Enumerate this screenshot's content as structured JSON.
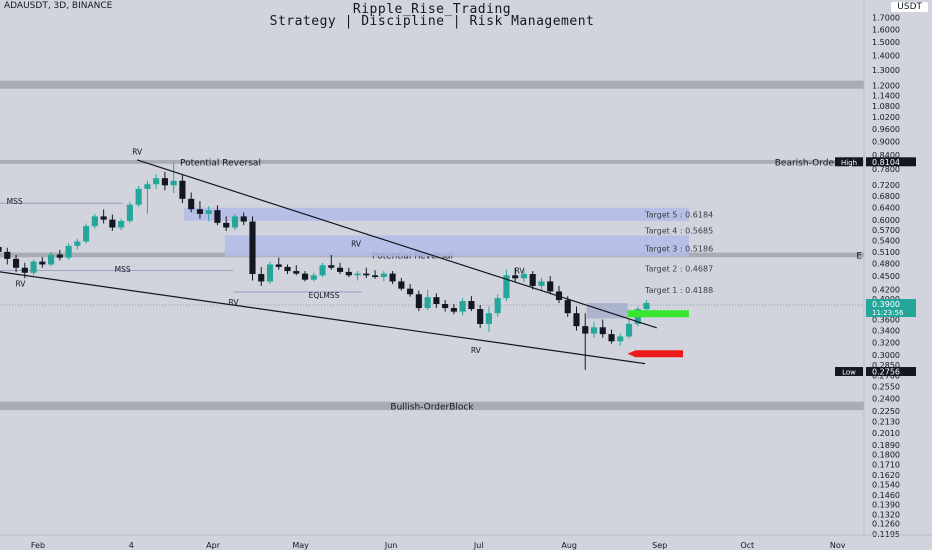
{
  "header": {
    "symbol": "ADAUSDT, 3D, BINANCE",
    "title": "Ripple_Rise_Trading",
    "subtitle": "Strategy | Discipline | Risk Management",
    "currency": "USDT"
  },
  "colors": {
    "background": "#d1d4dc",
    "up_candle": "#26a69a",
    "down_candle": "#131722",
    "zone_band": "#a9acb4",
    "target_zone": "#b3bbe8",
    "long_box": "#9ea8c8",
    "take_profit": "#37e72f",
    "stop_loss": "#ee1a1a",
    "trendline": "#131722"
  },
  "chart_data": {
    "type": "candlestick",
    "price_axis": {
      "scale": "log",
      "ticks": [
        "1.7000",
        "1.6000",
        "1.5000",
        "1.4000",
        "1.3000",
        "1.2000",
        "1.1400",
        "1.0800",
        "1.0200",
        "0.9600",
        "0.9000",
        "0.8400",
        "0.7800",
        "0.7200",
        "0.6800",
        "0.6400",
        "0.6000",
        "0.5700",
        "0.5400",
        "0.5100",
        "0.4800",
        "0.4500",
        "0.4200",
        "0.4000",
        "0.3800",
        "0.3600",
        "0.3400",
        "0.3200",
        "0.3000",
        "0.2850",
        "0.2700",
        "0.2550",
        "0.2400",
        "0.2250",
        "0.2130",
        "0.2010",
        "0.1890",
        "0.1800",
        "0.1710",
        "0.1620",
        "0.1540",
        "0.1460",
        "0.1390",
        "0.1320",
        "0.1260",
        "0.1195"
      ],
      "range": [
        0.1195,
        1.76
      ]
    },
    "time_axis": {
      "range": [
        "2024-01-19",
        "2024-11-10"
      ],
      "ticks": [
        {
          "label": "Feb",
          "date": "2024-02-01"
        },
        {
          "label": "4",
          "date": "2024-03-04"
        },
        {
          "label": "Apr",
          "date": "2024-04-01"
        },
        {
          "label": "May",
          "date": "2024-05-01"
        },
        {
          "label": "Jun",
          "date": "2024-06-01"
        },
        {
          "label": "Jul",
          "date": "2024-07-01"
        },
        {
          "label": "Aug",
          "date": "2024-08-01"
        },
        {
          "label": "Sep",
          "date": "2024-09-01"
        },
        {
          "label": "Oct",
          "date": "2024-10-01"
        },
        {
          "label": "Nov",
          "date": "2024-11-01"
        }
      ]
    },
    "candles": {
      "start": "2024-01-17",
      "interval_days": 3,
      "ohlc": [
        [
          0.523,
          0.53,
          0.498,
          0.51
        ],
        [
          0.51,
          0.521,
          0.478,
          0.492
        ],
        [
          0.492,
          0.502,
          0.46,
          0.47
        ],
        [
          0.47,
          0.482,
          0.445,
          0.458
        ],
        [
          0.458,
          0.49,
          0.452,
          0.485
        ],
        [
          0.485,
          0.496,
          0.47,
          0.478
        ],
        [
          0.478,
          0.51,
          0.474,
          0.503
        ],
        [
          0.503,
          0.515,
          0.488,
          0.495
        ],
        [
          0.495,
          0.533,
          0.49,
          0.526
        ],
        [
          0.526,
          0.546,
          0.516,
          0.538
        ],
        [
          0.538,
          0.59,
          0.532,
          0.582
        ],
        [
          0.582,
          0.62,
          0.575,
          0.612
        ],
        [
          0.612,
          0.634,
          0.59,
          0.602
        ],
        [
          0.602,
          0.618,
          0.568,
          0.578
        ],
        [
          0.578,
          0.605,
          0.57,
          0.598
        ],
        [
          0.598,
          0.66,
          0.592,
          0.65
        ],
        [
          0.65,
          0.716,
          0.642,
          0.705
        ],
        [
          0.705,
          0.735,
          0.62,
          0.722
        ],
        [
          0.722,
          0.76,
          0.705,
          0.745
        ],
        [
          0.745,
          0.77,
          0.7,
          0.718
        ],
        [
          0.718,
          0.805,
          0.69,
          0.735
        ],
        [
          0.735,
          0.76,
          0.655,
          0.67
        ],
        [
          0.67,
          0.692,
          0.625,
          0.635
        ],
        [
          0.635,
          0.662,
          0.605,
          0.62
        ],
        [
          0.62,
          0.645,
          0.598,
          0.632
        ],
        [
          0.632,
          0.648,
          0.585,
          0.592
        ],
        [
          0.592,
          0.612,
          0.568,
          0.578
        ],
        [
          0.578,
          0.62,
          0.57,
          0.612
        ],
        [
          0.612,
          0.625,
          0.585,
          0.596
        ],
        [
          0.596,
          0.612,
          0.44,
          0.455
        ],
        [
          0.455,
          0.472,
          0.428,
          0.438
        ],
        [
          0.438,
          0.485,
          0.432,
          0.478
        ],
        [
          0.478,
          0.495,
          0.465,
          0.472
        ],
        [
          0.472,
          0.478,
          0.455,
          0.462
        ],
        [
          0.462,
          0.476,
          0.452,
          0.456
        ],
        [
          0.456,
          0.462,
          0.438,
          0.442
        ],
        [
          0.442,
          0.458,
          0.438,
          0.452
        ],
        [
          0.452,
          0.482,
          0.448,
          0.476
        ],
        [
          0.476,
          0.502,
          0.465,
          0.47
        ],
        [
          0.47,
          0.482,
          0.455,
          0.46
        ],
        [
          0.46,
          0.47,
          0.448,
          0.452
        ],
        [
          0.452,
          0.462,
          0.44,
          0.456
        ],
        [
          0.456,
          0.47,
          0.446,
          0.452
        ],
        [
          0.452,
          0.464,
          0.444,
          0.448
        ],
        [
          0.448,
          0.462,
          0.438,
          0.456
        ],
        [
          0.456,
          0.462,
          0.432,
          0.438
        ],
        [
          0.438,
          0.446,
          0.418,
          0.422
        ],
        [
          0.422,
          0.432,
          0.405,
          0.41
        ],
        [
          0.41,
          0.418,
          0.376,
          0.382
        ],
        [
          0.382,
          0.42,
          0.378,
          0.404
        ],
        [
          0.404,
          0.412,
          0.382,
          0.39
        ],
        [
          0.39,
          0.398,
          0.375,
          0.382
        ],
        [
          0.382,
          0.39,
          0.37,
          0.375
        ],
        [
          0.375,
          0.402,
          0.368,
          0.396
        ],
        [
          0.396,
          0.406,
          0.376,
          0.38
        ],
        [
          0.38,
          0.388,
          0.345,
          0.352
        ],
        [
          0.352,
          0.385,
          0.338,
          0.372
        ],
        [
          0.372,
          0.41,
          0.365,
          0.402
        ],
        [
          0.402,
          0.465,
          0.396,
          0.452
        ],
        [
          0.452,
          0.47,
          0.438,
          0.445
        ],
        [
          0.445,
          0.465,
          0.436,
          0.455
        ],
        [
          0.455,
          0.462,
          0.42,
          0.428
        ],
        [
          0.428,
          0.446,
          0.418,
          0.438
        ],
        [
          0.438,
          0.45,
          0.41,
          0.416
        ],
        [
          0.416,
          0.428,
          0.392,
          0.398
        ],
        [
          0.398,
          0.406,
          0.365,
          0.372
        ],
        [
          0.372,
          0.385,
          0.34,
          0.348
        ],
        [
          0.348,
          0.372,
          0.278,
          0.335
        ],
        [
          0.335,
          0.356,
          0.328,
          0.346
        ],
        [
          0.346,
          0.36,
          0.328,
          0.334
        ],
        [
          0.334,
          0.342,
          0.318,
          0.322
        ],
        [
          0.322,
          0.335,
          0.315,
          0.33
        ],
        [
          0.33,
          0.36,
          0.326,
          0.352
        ],
        [
          0.352,
          0.385,
          0.348,
          0.38
        ],
        [
          0.38,
          0.398,
          0.372,
          0.392
        ]
      ]
    },
    "zones": [
      {
        "label": "",
        "from": 1.18,
        "to": 1.23
      },
      {
        "label": "Potential Reversal",
        "from": 0.802,
        "to": 0.818,
        "right_label": "Bearish-OrderBlock"
      },
      {
        "label": "Potential Reversal",
        "from": 0.496,
        "to": 0.508,
        "right_label": "E"
      },
      {
        "label": "Bullish-OrderBlock",
        "from": 0.226,
        "to": 0.236
      }
    ],
    "targets": [
      {
        "label": "Target 5 : 0.6184",
        "value": 0.6184,
        "box": [
          0.598,
          0.64
        ]
      },
      {
        "label": "Target 4 : 0.5685",
        "value": 0.5685,
        "box": null
      },
      {
        "label": "Target 3 : 0.5186",
        "value": 0.5186,
        "box": [
          0.498,
          0.555
        ]
      },
      {
        "label": "Target 2 : 0.4687",
        "value": 0.4687,
        "box": null
      },
      {
        "label": "Target 1 : 0.4188",
        "value": 0.4188,
        "box": null
      }
    ],
    "annotations": [
      {
        "text": "RV",
        "date": "2024-03-06",
        "price": 0.855
      },
      {
        "text": "MSS",
        "date": "2024-01-24",
        "price": 0.662
      },
      {
        "text": "RV",
        "date": "2024-01-26",
        "price": 0.433
      },
      {
        "text": "MSS",
        "date": "2024-03-01",
        "price": 0.467
      },
      {
        "text": "RV",
        "date": "2024-04-08",
        "price": 0.394
      },
      {
        "text": "EQLMSS",
        "date": "2024-05-09",
        "price": 0.408
      },
      {
        "text": "RV",
        "date": "2024-05-20",
        "price": 0.532
      },
      {
        "text": "RV",
        "date": "2024-07-15",
        "price": 0.463
      },
      {
        "text": "RV",
        "date": "2024-06-30",
        "price": 0.308
      }
    ],
    "trendlines": [
      {
        "from": [
          "2024-03-06",
          0.818
        ],
        "to": [
          "2024-08-31",
          0.345
        ]
      },
      {
        "from": [
          "2024-01-17",
          0.462
        ],
        "to": [
          "2024-08-27",
          0.287
        ]
      }
    ],
    "hlines": [
      {
        "price": 0.655,
        "from": "2024-01-17",
        "to": "2024-03-01"
      },
      {
        "price": 0.463,
        "from": "2024-01-17",
        "to": "2024-04-08"
      },
      {
        "price": 0.415,
        "from": "2024-04-08",
        "to": "2024-05-22"
      },
      {
        "price": 0.388,
        "from": "2024-01-17",
        "to": "2024-11-10",
        "dotted": true
      }
    ],
    "position": {
      "entry_box": [
        0.362,
        0.392
      ],
      "take_profit": 0.371,
      "take_profit_label": "",
      "stop_loss": 0.302,
      "box_from": "2024-08-07",
      "box_to": "2024-08-21",
      "tp_from": "2024-08-21",
      "tp_to": "2024-09-11",
      "sl_from": "2024-08-21",
      "sl_to": "2024-09-09"
    },
    "price_labels": {
      "high": {
        "label": "High",
        "value": "0.8104",
        "price": 0.8104
      },
      "current": {
        "value": "0.3900",
        "sub": "11:23:56",
        "price": 0.39
      },
      "low": {
        "label": "Low",
        "value": "0.2756",
        "price": 0.2756
      }
    }
  }
}
